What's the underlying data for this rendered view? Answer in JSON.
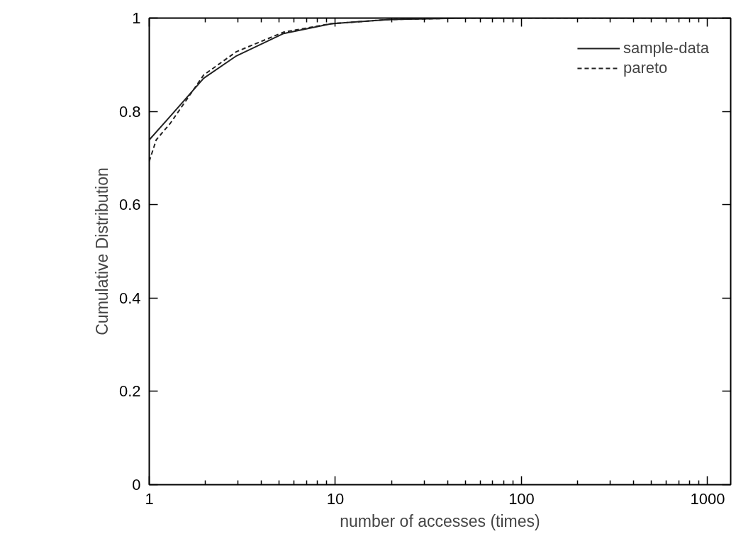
{
  "chart_data": {
    "type": "line",
    "xlabel": "number of accesses (times)",
    "ylabel": "Cumulative Distribution",
    "log": "x",
    "xlim": [
      1,
      1330
    ],
    "ylim": [
      0,
      1
    ],
    "xticks": [
      1,
      {
        "value": 2,
        "label": null
      },
      {
        "value": 3,
        "label": null
      },
      {
        "value": 4,
        "label": null
      },
      {
        "value": 5,
        "label": null
      },
      {
        "value": 6,
        "label": null
      },
      {
        "value": 7,
        "label": null
      },
      {
        "value": 8,
        "label": null
      },
      {
        "value": 9,
        "label": null
      },
      10,
      {
        "value": 20,
        "label": null
      },
      {
        "value": 30,
        "label": null
      },
      {
        "value": 40,
        "label": null
      },
      {
        "value": 50,
        "label": null
      },
      {
        "value": 60,
        "label": null
      },
      {
        "value": 70,
        "label": null
      },
      {
        "value": 80,
        "label": null
      },
      {
        "value": 90,
        "label": null
      },
      100,
      {
        "value": 200,
        "label": null
      },
      {
        "value": 300,
        "label": null
      },
      {
        "value": 400,
        "label": null
      },
      {
        "value": 500,
        "label": null
      },
      {
        "value": 600,
        "label": null
      },
      {
        "value": 700,
        "label": null
      },
      {
        "value": 800,
        "label": null
      },
      {
        "value": 900,
        "label": null
      },
      1000
    ],
    "yticks": [
      0,
      0.2,
      0.4,
      0.6,
      0.8,
      1
    ],
    "grid": false,
    "legend": "top right",
    "series": [
      {
        "name": "sample-data",
        "color": "#222222",
        "line_style": "solid",
        "x": [
          1,
          1.3,
          1.96,
          2.94,
          5.28,
          9.5,
          19.6,
          50,
          200,
          1330
        ],
        "values": [
          0.739,
          0.79,
          0.871,
          0.919,
          0.967,
          0.988,
          0.997,
          1,
          1,
          1
        ]
      },
      {
        "name": "pareto",
        "color": "#222222",
        "line_style": "dashed",
        "x": [
          1,
          1.09,
          1.3,
          1.96,
          2.94,
          5.28,
          9.5,
          19.6,
          50,
          200,
          1330
        ],
        "values": [
          0.693,
          0.739,
          0.775,
          0.878,
          0.928,
          0.97,
          0.988,
          0.997,
          1,
          1,
          1
        ]
      }
    ]
  }
}
